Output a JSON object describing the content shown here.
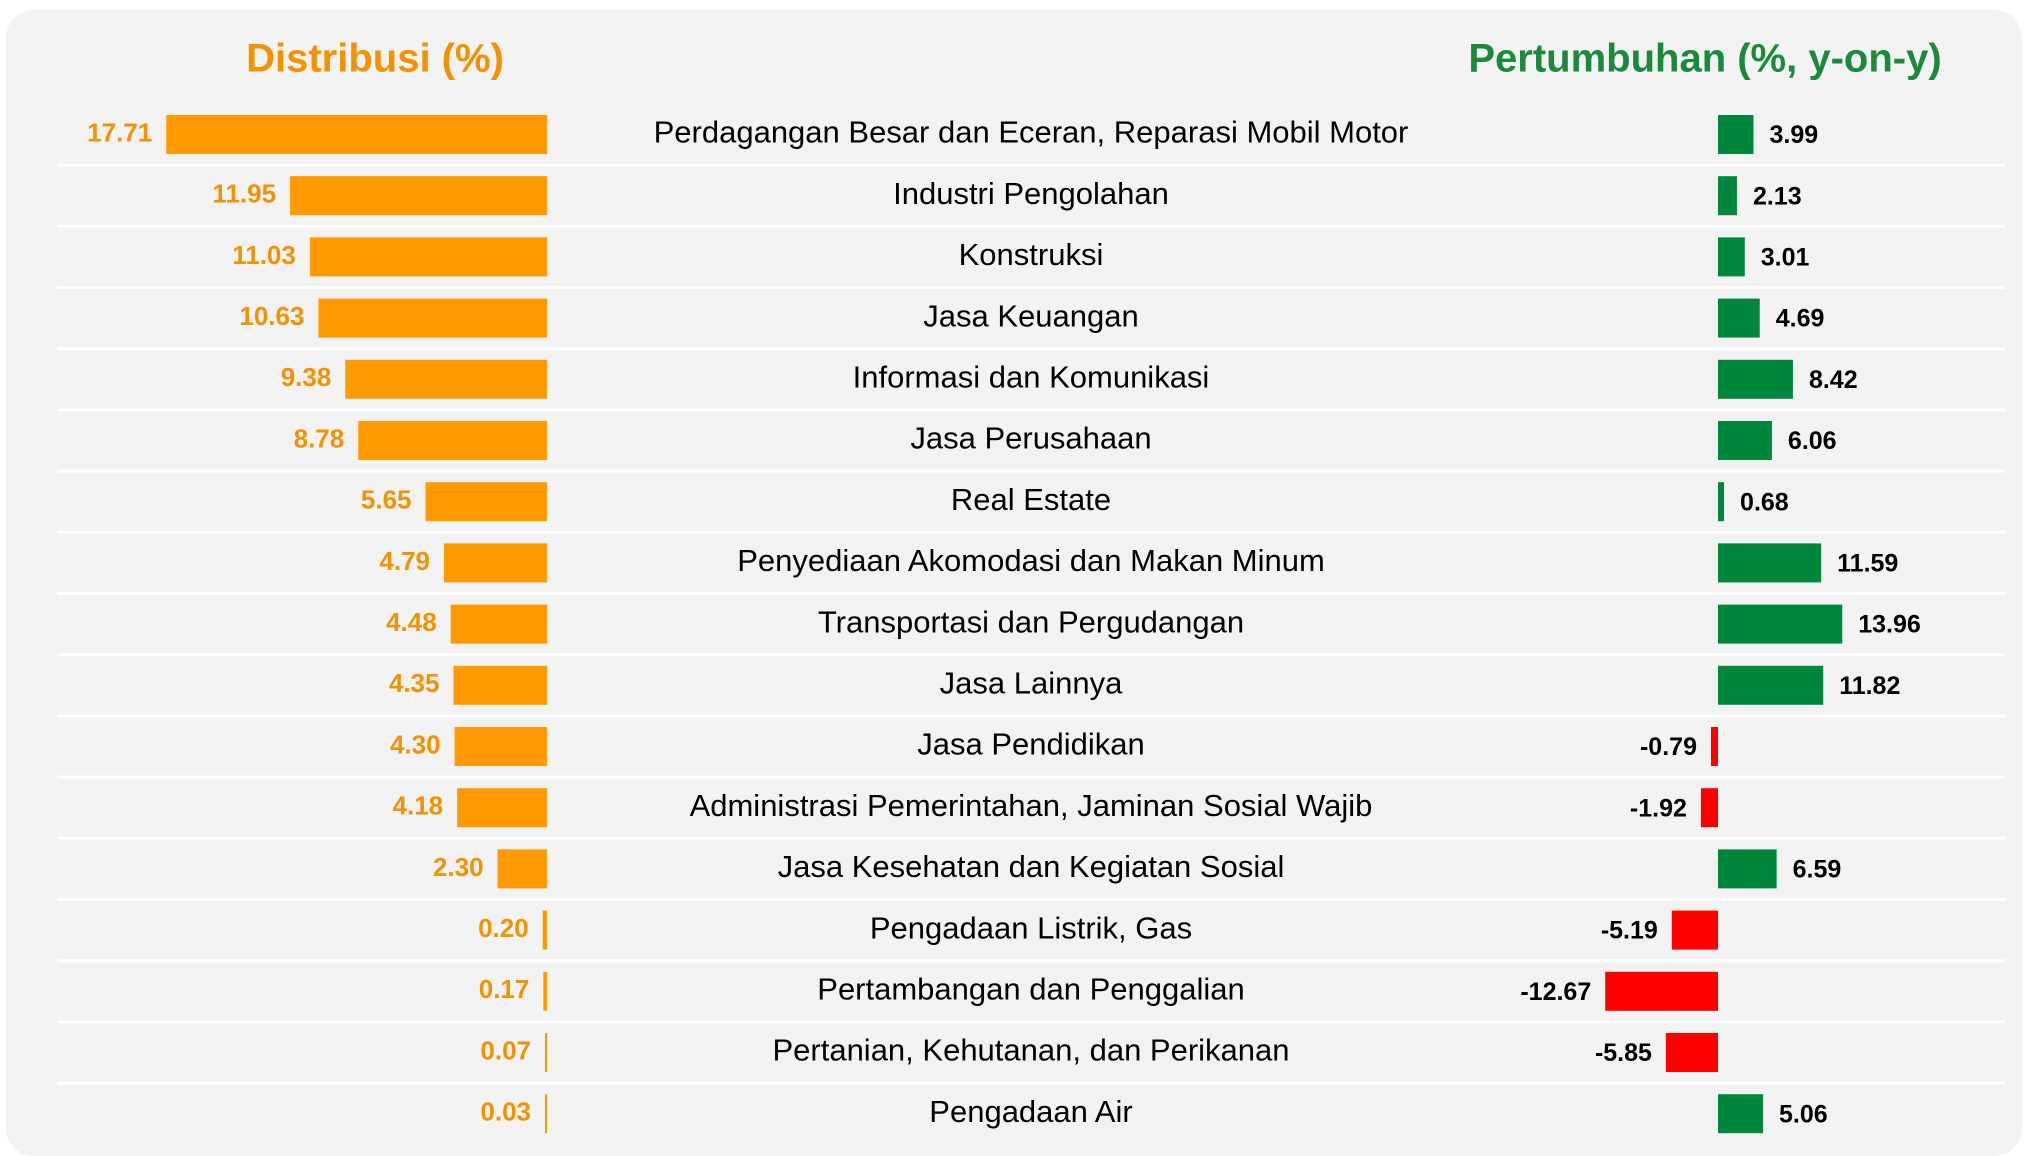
{
  "chart_data": [
    {
      "type": "bar",
      "title": "Distribusi (%)",
      "color": "#ff9900",
      "categories": [
        "Perdagangan Besar dan Eceran, Reparasi Mobil Motor",
        "Industri Pengolahan",
        "Konstruksi",
        "Jasa Keuangan",
        "Informasi dan Komunikasi",
        "Jasa Perusahaan",
        "Real Estate",
        "Penyediaan Akomodasi dan Makan Minum",
        "Transportasi dan Pergudangan",
        "Jasa Lainnya",
        "Jasa Pendidikan",
        "Administrasi Pemerintahan, Jaminan Sosial Wajib",
        "Jasa Kesehatan dan Kegiatan Sosial",
        "Pengadaan Listrik, Gas",
        "Pertambangan dan Penggalian",
        "Pertanian, Kehutanan, dan Perikanan",
        "Pengadaan Air"
      ],
      "values": [
        17.71,
        11.95,
        11.03,
        10.63,
        9.38,
        8.78,
        5.65,
        4.79,
        4.48,
        4.35,
        4.3,
        4.18,
        2.3,
        0.2,
        0.17,
        0.07,
        0.03
      ],
      "value_labels": [
        "17.71",
        "11.95",
        "11.03",
        "10.63",
        "9.38",
        "8.78",
        "5.65",
        "4.79",
        "4.48",
        "4.35",
        "4.30",
        "4.18",
        "2.30",
        "0.20",
        "0.17",
        "0.07",
        "0.03"
      ]
    },
    {
      "type": "bar",
      "title": "Pertumbuhan (%, y-on-y)",
      "color": "#00873c",
      "negative_color": "#ff0000",
      "values": [
        3.99,
        2.13,
        3.01,
        4.69,
        8.42,
        6.06,
        0.68,
        11.59,
        13.96,
        11.82,
        -0.79,
        -1.92,
        6.59,
        -5.19,
        -12.67,
        -5.85,
        5.06
      ]
    }
  ]
}
